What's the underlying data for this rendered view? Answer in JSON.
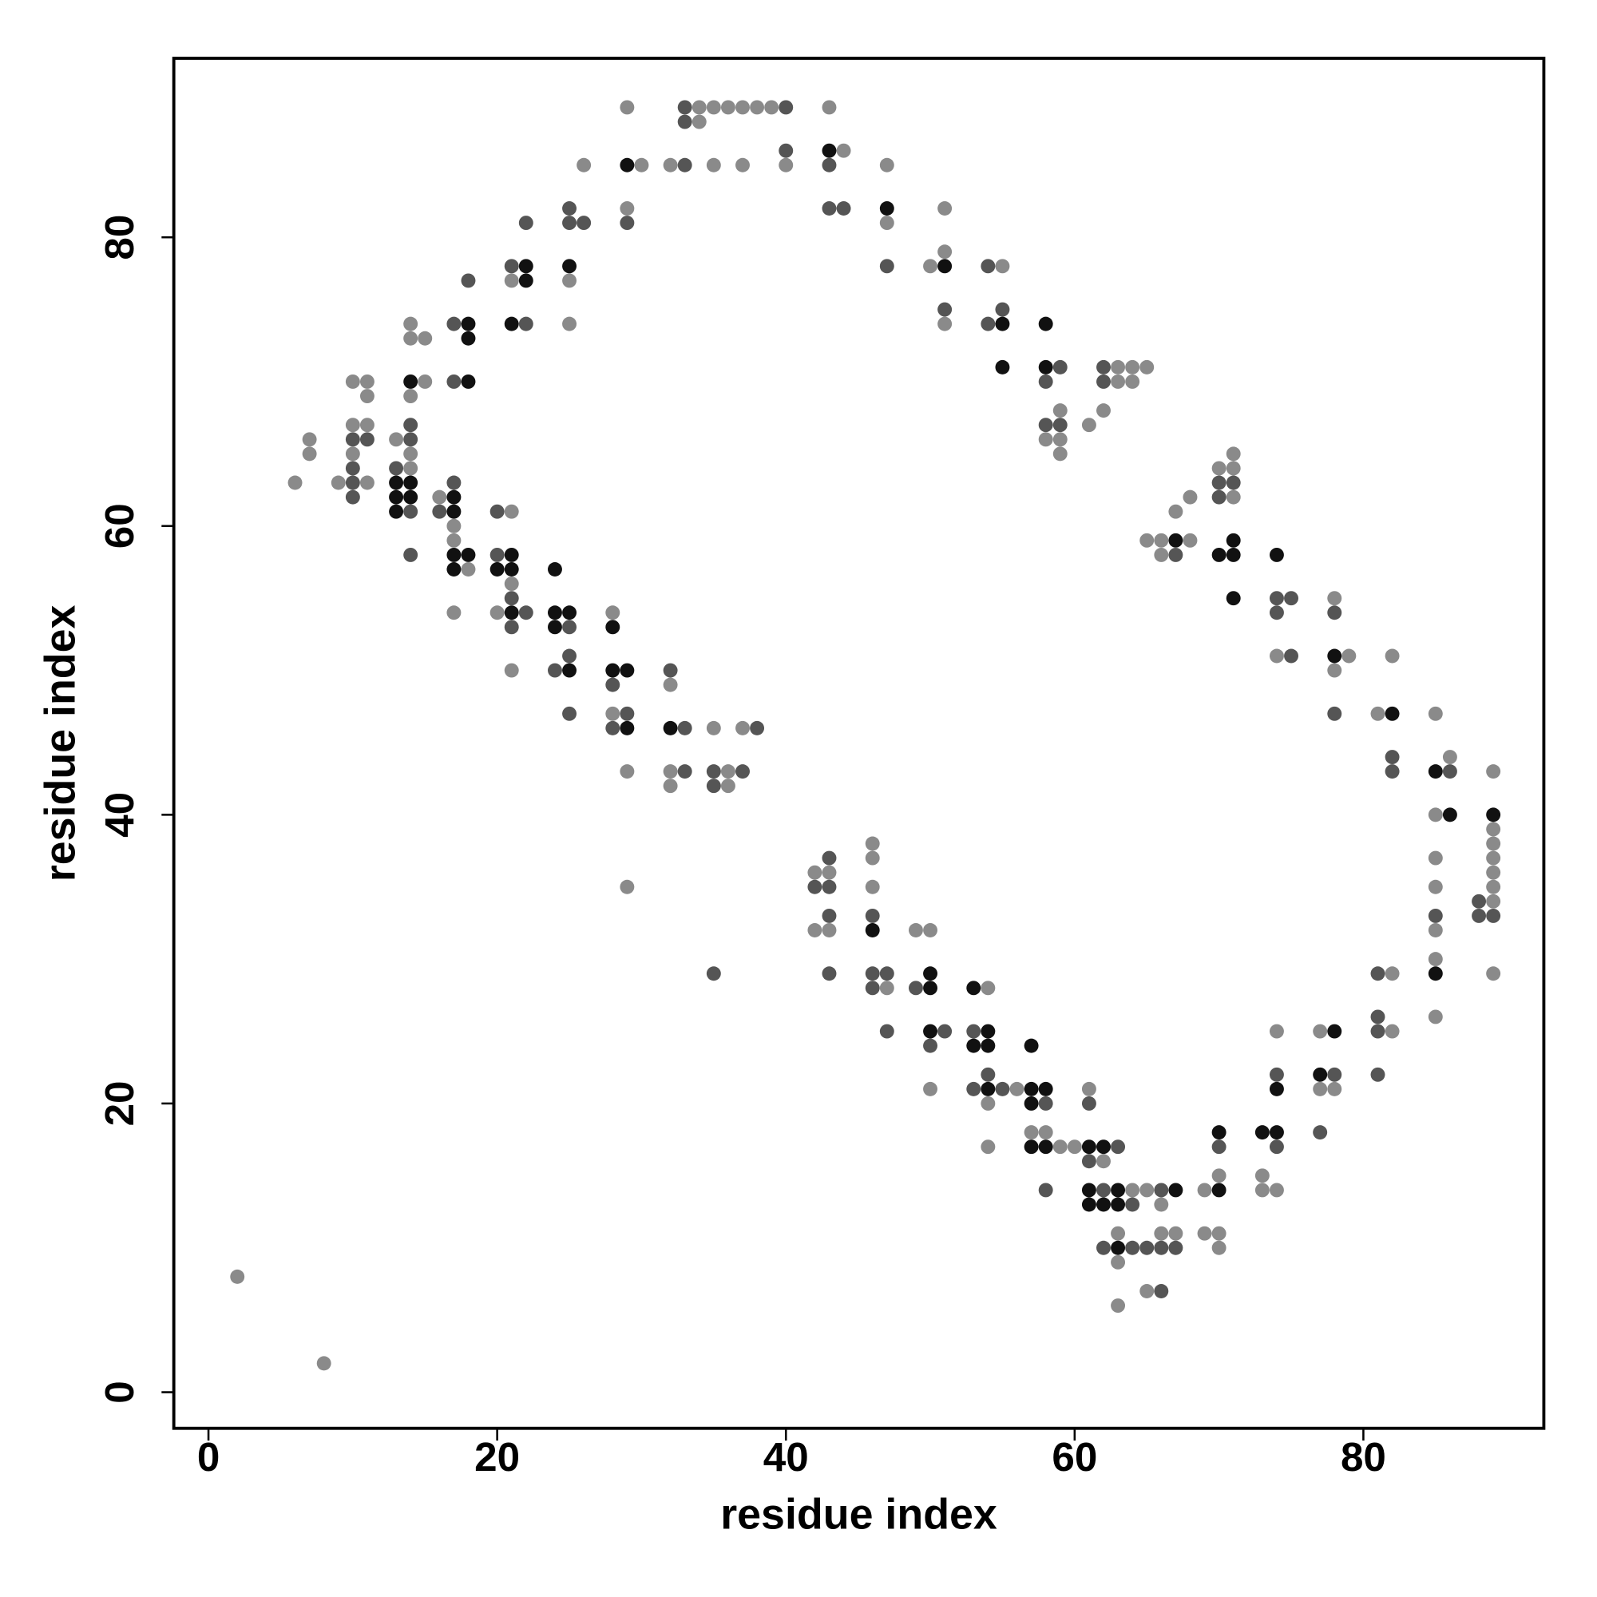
{
  "chart_data": {
    "type": "scatter",
    "x_label": "residue index",
    "y_label": "residue index",
    "xlim": [
      -2.4,
      92.5
    ],
    "ylim": [
      -2.5,
      92.4
    ],
    "xticks": [
      0,
      20,
      40,
      60,
      80
    ],
    "yticks": [
      0,
      20,
      40,
      60,
      80
    ],
    "series": [
      {
        "color": "#8a8a8a",
        "x": [
          2,
          8,
          6,
          7,
          7,
          9,
          10,
          10,
          10,
          11,
          11,
          11,
          11,
          13,
          14,
          14,
          14,
          14,
          14,
          15,
          15,
          16,
          17,
          17,
          17,
          18,
          20,
          21,
          21,
          21,
          21,
          25,
          25,
          26,
          28,
          28,
          29,
          29,
          29,
          29,
          30,
          32,
          32,
          32,
          32,
          34,
          34,
          35,
          35,
          35,
          36,
          36,
          36,
          37,
          37,
          37,
          38,
          39,
          40,
          42,
          42,
          43,
          43,
          43,
          44,
          46,
          46,
          46,
          47,
          47,
          47,
          49,
          50,
          50,
          50,
          51,
          51,
          51,
          54,
          54,
          54,
          55,
          56,
          57,
          58,
          58,
          59,
          59,
          59,
          59,
          60,
          61,
          61,
          62,
          62,
          63,
          63,
          63,
          63,
          63,
          64,
          64,
          64,
          65,
          65,
          65,
          65,
          66,
          66,
          66,
          66,
          67,
          67,
          68,
          68,
          69,
          69,
          70,
          70,
          70,
          70,
          71,
          71,
          71,
          73,
          73,
          74,
          74,
          74,
          77,
          77,
          78,
          78,
          78,
          79,
          81,
          82,
          82,
          82,
          85,
          85,
          85,
          85,
          85,
          85,
          85,
          86,
          89,
          89,
          89,
          89,
          89,
          89,
          89,
          89
        ],
        "values": [
          8,
          2,
          63,
          66,
          65,
          63,
          70,
          67,
          65,
          70,
          69,
          67,
          63,
          66,
          74,
          73,
          69,
          65,
          64,
          73,
          70,
          62,
          60,
          59,
          54,
          57,
          54,
          77,
          61,
          56,
          50,
          77,
          74,
          85,
          54,
          47,
          89,
          82,
          43,
          35,
          85,
          85,
          49,
          43,
          42,
          89,
          88,
          89,
          85,
          46,
          89,
          43,
          42,
          89,
          85,
          46,
          89,
          89,
          85,
          36,
          32,
          89,
          36,
          32,
          86,
          38,
          37,
          35,
          85,
          81,
          28,
          32,
          78,
          32,
          21,
          82,
          79,
          74,
          28,
          20,
          17,
          78,
          21,
          18,
          66,
          18,
          68,
          66,
          65,
          17,
          17,
          67,
          21,
          68,
          16,
          71,
          70,
          11,
          9,
          6,
          71,
          70,
          14,
          71,
          59,
          14,
          7,
          59,
          58,
          13,
          11,
          61,
          11,
          62,
          59,
          14,
          11,
          64,
          15,
          11,
          10,
          65,
          64,
          62,
          15,
          14,
          51,
          25,
          14,
          25,
          21,
          55,
          50,
          21,
          51,
          47,
          51,
          29,
          25,
          47,
          40,
          37,
          35,
          32,
          30,
          26,
          44,
          43,
          39,
          38,
          37,
          36,
          35,
          34,
          29
        ]
      },
      {
        "color": "#555555",
        "x": [
          10,
          10,
          10,
          10,
          11,
          13,
          14,
          14,
          14,
          14,
          16,
          17,
          17,
          17,
          18,
          20,
          20,
          21,
          21,
          21,
          22,
          22,
          22,
          24,
          25,
          25,
          25,
          25,
          25,
          26,
          28,
          28,
          29,
          29,
          32,
          33,
          33,
          33,
          33,
          33,
          35,
          35,
          35,
          37,
          38,
          40,
          40,
          42,
          43,
          43,
          43,
          43,
          43,
          43,
          44,
          46,
          46,
          46,
          47,
          47,
          47,
          49,
          50,
          51,
          51,
          53,
          53,
          54,
          54,
          54,
          55,
          55,
          58,
          58,
          58,
          58,
          59,
          59,
          61,
          61,
          62,
          62,
          62,
          62,
          63,
          64,
          64,
          65,
          66,
          66,
          66,
          67,
          67,
          70,
          70,
          70,
          71,
          74,
          74,
          74,
          74,
          75,
          75,
          77,
          78,
          78,
          78,
          81,
          81,
          81,
          81,
          82,
          82,
          85,
          86,
          88,
          88,
          89
        ],
        "values": [
          66,
          64,
          63,
          62,
          66,
          64,
          67,
          66,
          61,
          58,
          61,
          74,
          70,
          63,
          77,
          61,
          58,
          78,
          55,
          53,
          81,
          74,
          54,
          50,
          82,
          81,
          53,
          51,
          47,
          81,
          49,
          46,
          81,
          47,
          50,
          89,
          88,
          85,
          46,
          43,
          43,
          42,
          29,
          43,
          46,
          89,
          86,
          35,
          85,
          82,
          37,
          35,
          33,
          29,
          82,
          33,
          29,
          28,
          78,
          29,
          25,
          28,
          24,
          75,
          25,
          25,
          21,
          78,
          74,
          22,
          75,
          21,
          70,
          67,
          20,
          14,
          71,
          67,
          20,
          16,
          71,
          70,
          14,
          10,
          17,
          13,
          10,
          10,
          14,
          10,
          7,
          58,
          10,
          63,
          62,
          17,
          63,
          55,
          54,
          22,
          17,
          55,
          51,
          18,
          54,
          47,
          22,
          29,
          26,
          25,
          22,
          44,
          43,
          33,
          43,
          34,
          33,
          33
        ]
      },
      {
        "color": "#111111",
        "x": [
          13,
          13,
          13,
          14,
          14,
          14,
          17,
          17,
          17,
          17,
          18,
          18,
          18,
          18,
          20,
          21,
          21,
          21,
          21,
          22,
          22,
          24,
          24,
          24,
          25,
          25,
          25,
          28,
          28,
          29,
          29,
          29,
          32,
          43,
          46,
          47,
          50,
          50,
          50,
          51,
          53,
          53,
          54,
          54,
          54,
          55,
          55,
          57,
          57,
          57,
          57,
          58,
          58,
          58,
          58,
          61,
          61,
          61,
          62,
          62,
          63,
          63,
          63,
          67,
          67,
          70,
          70,
          70,
          71,
          71,
          71,
          73,
          74,
          74,
          74,
          78,
          78,
          77,
          82,
          85,
          85,
          86,
          89
        ],
        "values": [
          63,
          62,
          61,
          70,
          63,
          62,
          62,
          61,
          58,
          57,
          74,
          73,
          70,
          58,
          57,
          74,
          58,
          57,
          54,
          78,
          77,
          57,
          54,
          53,
          78,
          54,
          50,
          53,
          50,
          85,
          50,
          46,
          46,
          86,
          32,
          82,
          29,
          28,
          25,
          78,
          28,
          24,
          25,
          24,
          21,
          74,
          71,
          24,
          21,
          20,
          17,
          74,
          71,
          21,
          17,
          17,
          14,
          13,
          17,
          13,
          14,
          13,
          10,
          59,
          14,
          58,
          18,
          14,
          59,
          58,
          55,
          18,
          58,
          21,
          18,
          51,
          25,
          22,
          47,
          43,
          29,
          40,
          40
        ]
      }
    ]
  }
}
